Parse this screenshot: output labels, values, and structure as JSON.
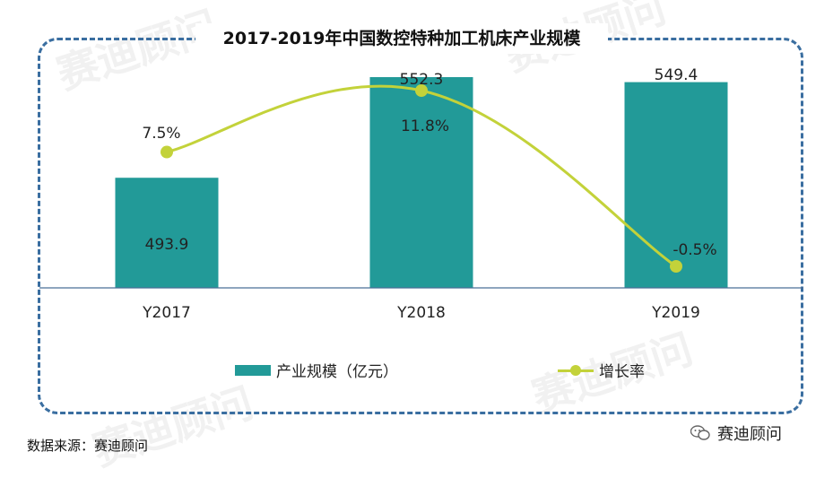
{
  "title": "2017-2019年中国数控特种加工机床产业规模",
  "source": "数据来源：赛迪顾问",
  "brand": "赛迪顾问",
  "watermark": "赛迪顾问",
  "colors": {
    "bar": "#229a98",
    "line": "#c3d23a",
    "frame": "#3a6ea0"
  },
  "chart_data": {
    "type": "bar",
    "title": "2017-2019年中国数控特种加工机床产业规模",
    "categories": [
      "Y2017",
      "Y2018",
      "Y2019"
    ],
    "series": [
      {
        "name": "产业规模（亿元）",
        "type": "bar",
        "values": [
          493.9,
          552.3,
          549.4
        ],
        "labels": [
          "493.9",
          "552.3",
          "549.4"
        ]
      },
      {
        "name": "增长率",
        "type": "line",
        "values": [
          7.5,
          11.8,
          -0.5
        ],
        "labels": [
          "7.5%",
          "11.8%",
          "-0.5%"
        ]
      }
    ],
    "legend_position": "bottom",
    "grid": false
  }
}
